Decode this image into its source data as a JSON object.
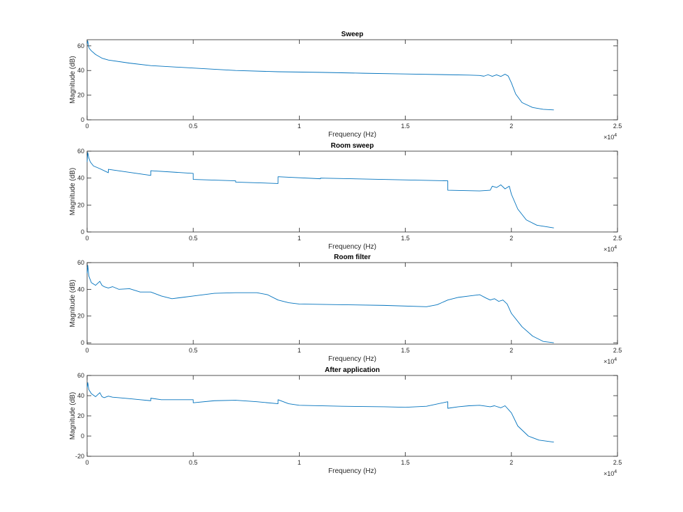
{
  "figure": {
    "background": "#ffffff",
    "line_color": "#0072BD",
    "axis_color": "#262626"
  },
  "chart_data": [
    {
      "type": "line",
      "title": "Sweep",
      "xlabel": "Frequency (Hz)",
      "ylabel": "Magnitude (dB)",
      "xlim": [
        0,
        25000
      ],
      "ylim": [
        0,
        65
      ],
      "xticks": [
        0,
        5000,
        10000,
        15000,
        20000,
        25000
      ],
      "xtick_labels": [
        "0",
        "0.5",
        "1",
        "1.5",
        "2",
        "2.5"
      ],
      "yticks": [
        0,
        20,
        40,
        60
      ],
      "ytick_labels": [
        "0",
        "20",
        "40",
        "60"
      ],
      "x_multiplier": "×10",
      "x_multiplier_exp": "4",
      "grid": false,
      "series": [
        {
          "x": [
            0,
            30,
            60,
            100,
            200,
            400,
            700,
            1000,
            2000,
            3000,
            5000,
            7000,
            9000,
            11000,
            13000,
            15000,
            17000,
            18000,
            18500,
            18700,
            18900,
            19100,
            19300,
            19500,
            19700,
            19850,
            20000,
            20200,
            20500,
            21000,
            21500,
            22000
          ],
          "y": [
            62,
            64,
            60,
            58,
            56,
            53,
            50,
            48.5,
            46,
            44,
            42,
            40,
            39,
            38.5,
            37.8,
            37.2,
            36.6,
            36.3,
            36,
            35.4,
            36.6,
            35.3,
            36.5,
            35.2,
            37,
            35.5,
            30,
            21,
            14,
            10,
            8.5,
            8
          ]
        }
      ]
    },
    {
      "type": "line",
      "title": "Room sweep",
      "xlabel": "Frequency (Hz)",
      "ylabel": "Magnitude (dB)",
      "xlim": [
        0,
        25000
      ],
      "ylim": [
        0,
        60
      ],
      "xticks": [
        0,
        5000,
        10000,
        15000,
        20000,
        25000
      ],
      "xtick_labels": [
        "0",
        "0.5",
        "1",
        "1.5",
        "2",
        "2.5"
      ],
      "yticks": [
        0,
        20,
        40,
        60
      ],
      "ytick_labels": [
        "0",
        "20",
        "40",
        "60"
      ],
      "x_multiplier": "×10",
      "x_multiplier_exp": "4",
      "grid": false,
      "series": [
        {
          "x": [
            0,
            30,
            80,
            150,
            300,
            600,
            999,
            1000,
            3000,
            3001,
            5000,
            5001,
            7000,
            7001,
            9000,
            9001,
            11000,
            11001,
            17000,
            17001,
            18500,
            19000,
            19100,
            19300,
            19500,
            19700,
            19900,
            20000,
            20300,
            20700,
            21200,
            22000
          ],
          "y": [
            52,
            59,
            55,
            52,
            49,
            47,
            44,
            46.5,
            42,
            45.5,
            43.5,
            39,
            38,
            37,
            36,
            41,
            39.5,
            40,
            38,
            31,
            30.5,
            31,
            34,
            33,
            35,
            32,
            34,
            28,
            17,
            9,
            5,
            3
          ]
        }
      ]
    },
    {
      "type": "line",
      "title": "Room filter",
      "xlabel": "Frequency (Hz)",
      "ylabel": "Magnitude (dB)",
      "xlim": [
        0,
        25000
      ],
      "ylim": [
        -1,
        60
      ],
      "xticks": [
        0,
        5000,
        10000,
        15000,
        20000,
        25000
      ],
      "xtick_labels": [
        "0",
        "0.5",
        "1",
        "1.5",
        "2",
        "2.5"
      ],
      "yticks": [
        0,
        20,
        40,
        60
      ],
      "ytick_labels": [
        "0",
        "20",
        "40",
        "60"
      ],
      "x_multiplier": "×10",
      "x_multiplier_exp": "4",
      "grid": false,
      "series": [
        {
          "x": [
            0,
            30,
            80,
            200,
            400,
            600,
            700,
            800,
            1000,
            1200,
            1500,
            2000,
            2500,
            3000,
            3500,
            4000,
            4500,
            5000,
            6000,
            7000,
            8000,
            8500,
            9000,
            9500,
            10000,
            12000,
            14000,
            16000,
            16500,
            17000,
            17500,
            18000,
            18500,
            18800,
            19000,
            19200,
            19400,
            19600,
            19800,
            20000,
            20500,
            21000,
            21500,
            22000
          ],
          "y": [
            52,
            58,
            50,
            45,
            43,
            46,
            43,
            42,
            41,
            42,
            40,
            40.5,
            38,
            38,
            35,
            33,
            34,
            35,
            37,
            37.5,
            37.5,
            36,
            32,
            30,
            29,
            28.5,
            28,
            27,
            28.5,
            32,
            34,
            35,
            36,
            33.5,
            32,
            33,
            31,
            32,
            29,
            22,
            12,
            5,
            1,
            0
          ]
        }
      ]
    },
    {
      "type": "line",
      "title": "After application",
      "xlabel": "Frequency (Hz)",
      "ylabel": "Magnitude (dB)",
      "xlim": [
        0,
        25000
      ],
      "ylim": [
        -20,
        60
      ],
      "xticks": [
        0,
        5000,
        10000,
        15000,
        20000,
        25000
      ],
      "xtick_labels": [
        "0",
        "0.5",
        "1",
        "1.5",
        "2",
        "2.5"
      ],
      "yticks": [
        -20,
        0,
        20,
        40,
        60
      ],
      "ytick_labels": [
        "-20",
        "0",
        "20",
        "40",
        "60"
      ],
      "x_multiplier": "×10",
      "x_multiplier_exp": "4",
      "grid": false,
      "series": [
        {
          "x": [
            0,
            30,
            80,
            200,
            400,
            600,
            700,
            800,
            1000,
            1200,
            1500,
            2000,
            2500,
            3000,
            3001,
            3500,
            4000,
            5000,
            5001,
            6000,
            7000,
            8000,
            9000,
            9001,
            9500,
            10000,
            12000,
            14000,
            15000,
            16000,
            17000,
            17001,
            17500,
            18000,
            18500,
            19000,
            19200,
            19500,
            19700,
            20000,
            20300,
            20800,
            21300,
            22000
          ],
          "y": [
            48,
            53,
            46,
            42,
            39,
            43,
            39,
            38,
            39.5,
            38.5,
            38,
            37,
            36,
            35,
            37.5,
            36,
            36,
            36,
            33,
            35,
            35.5,
            34,
            32,
            36,
            32,
            30.5,
            29.5,
            29,
            28.5,
            29.5,
            34,
            27.5,
            29,
            30,
            30.5,
            29,
            30,
            28,
            30,
            23,
            10,
            0,
            -4,
            -6
          ]
        }
      ]
    }
  ]
}
